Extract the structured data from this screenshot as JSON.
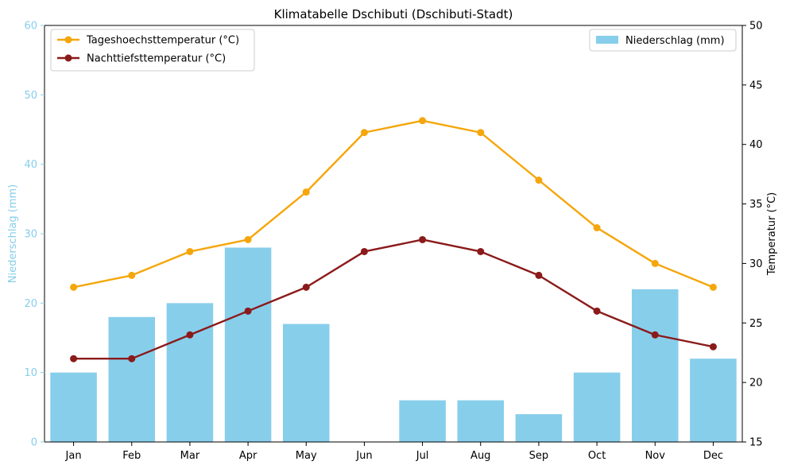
{
  "chart_data": {
    "type": "bar+line",
    "title": "Klimatabelle Dschibuti (Dschibuti-Stadt)",
    "categories": [
      "Jan",
      "Feb",
      "Mar",
      "Apr",
      "May",
      "Jun",
      "Jul",
      "Aug",
      "Sep",
      "Oct",
      "Nov",
      "Dec"
    ],
    "left_axis": {
      "label": "Niederschlag (mm)",
      "range": [
        0,
        60
      ],
      "ticks": [
        0,
        10,
        20,
        30,
        40,
        50,
        60
      ],
      "color": "#87ceeb"
    },
    "right_axis": {
      "label": "Temperatur (°C)",
      "range": [
        15,
        50
      ],
      "ticks": [
        15,
        20,
        25,
        30,
        35,
        40,
        45,
        50
      ],
      "color": "#000000"
    },
    "bar_series": {
      "name": "Niederschlag (mm)",
      "axis": "left",
      "color": "#87ceeb",
      "values": [
        10,
        18,
        20,
        28,
        17,
        0,
        6,
        6,
        4,
        10,
        22,
        12
      ]
    },
    "line_series": [
      {
        "name": "Tageshoechsttemperatur (°C)",
        "axis": "right",
        "color": "#f5a60a",
        "values": [
          28,
          29,
          31,
          32,
          36,
          41,
          42,
          41,
          37,
          33,
          30,
          28
        ]
      },
      {
        "name": "Nachttiefsttemperatur (°C)",
        "axis": "right",
        "color": "#8b1a1a",
        "values": [
          22,
          22,
          24,
          26,
          28,
          31,
          32,
          31,
          29,
          26,
          24,
          23
        ]
      }
    ],
    "legend": {
      "lines_position": "top-left",
      "bars_position": "top-right"
    },
    "grid": false
  }
}
